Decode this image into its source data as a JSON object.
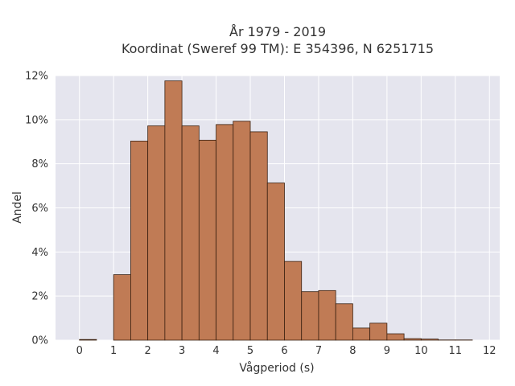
{
  "chart_data": {
    "type": "bar",
    "title": "År 1979 - 2019",
    "subtitle": "Koordinat (Sweref 99 TM): E 354396, N 6251715",
    "xlabel": "Vågperiod (s)",
    "ylabel": "Andel",
    "xlim": [
      -0.7,
      12.3
    ],
    "ylim": [
      0,
      0.12
    ],
    "x_ticks": [
      0,
      1,
      2,
      3,
      4,
      5,
      6,
      7,
      8,
      9,
      10,
      11,
      12
    ],
    "y_ticks": [
      {
        "value": 0,
        "label": "0%"
      },
      {
        "value": 0.02,
        "label": "2%"
      },
      {
        "value": 0.04,
        "label": "4%"
      },
      {
        "value": 0.06,
        "label": "6%"
      },
      {
        "value": 0.08,
        "label": "8%"
      },
      {
        "value": 0.1,
        "label": "10%"
      },
      {
        "value": 0.12,
        "label": "12%"
      }
    ],
    "bin_width": 0.5,
    "bins": [
      {
        "x0": 0.0,
        "x1": 0.5,
        "value": 0.0003
      },
      {
        "x0": 1.0,
        "x1": 1.5,
        "value": 0.0297
      },
      {
        "x0": 1.5,
        "x1": 2.0,
        "value": 0.0903
      },
      {
        "x0": 2.0,
        "x1": 2.5,
        "value": 0.0972
      },
      {
        "x0": 2.5,
        "x1": 3.0,
        "value": 0.1176
      },
      {
        "x0": 3.0,
        "x1": 3.5,
        "value": 0.0972
      },
      {
        "x0": 3.5,
        "x1": 4.0,
        "value": 0.0907
      },
      {
        "x0": 4.0,
        "x1": 4.5,
        "value": 0.0978
      },
      {
        "x0": 4.5,
        "x1": 5.0,
        "value": 0.0993
      },
      {
        "x0": 5.0,
        "x1": 5.5,
        "value": 0.0945
      },
      {
        "x0": 5.5,
        "x1": 6.0,
        "value": 0.0713
      },
      {
        "x0": 6.0,
        "x1": 6.5,
        "value": 0.0357
      },
      {
        "x0": 6.5,
        "x1": 7.0,
        "value": 0.022
      },
      {
        "x0": 7.0,
        "x1": 7.5,
        "value": 0.0225
      },
      {
        "x0": 7.5,
        "x1": 8.0,
        "value": 0.0165
      },
      {
        "x0": 8.0,
        "x1": 8.5,
        "value": 0.0055
      },
      {
        "x0": 8.5,
        "x1": 9.0,
        "value": 0.0077
      },
      {
        "x0": 9.0,
        "x1": 9.5,
        "value": 0.0029
      },
      {
        "x0": 9.5,
        "x1": 10.0,
        "value": 0.0007
      },
      {
        "x0": 10.0,
        "x1": 10.5,
        "value": 0.0005
      },
      {
        "x0": 10.5,
        "x1": 11.0,
        "value": 0.0001
      },
      {
        "x0": 11.0,
        "x1": 11.5,
        "value": 0.0001
      }
    ],
    "grid": true,
    "colors": {
      "bar": "#c07b55",
      "bar_edge": "#3a2010",
      "plot_bg": "#e5e5ee",
      "grid": "#ffffff"
    }
  }
}
